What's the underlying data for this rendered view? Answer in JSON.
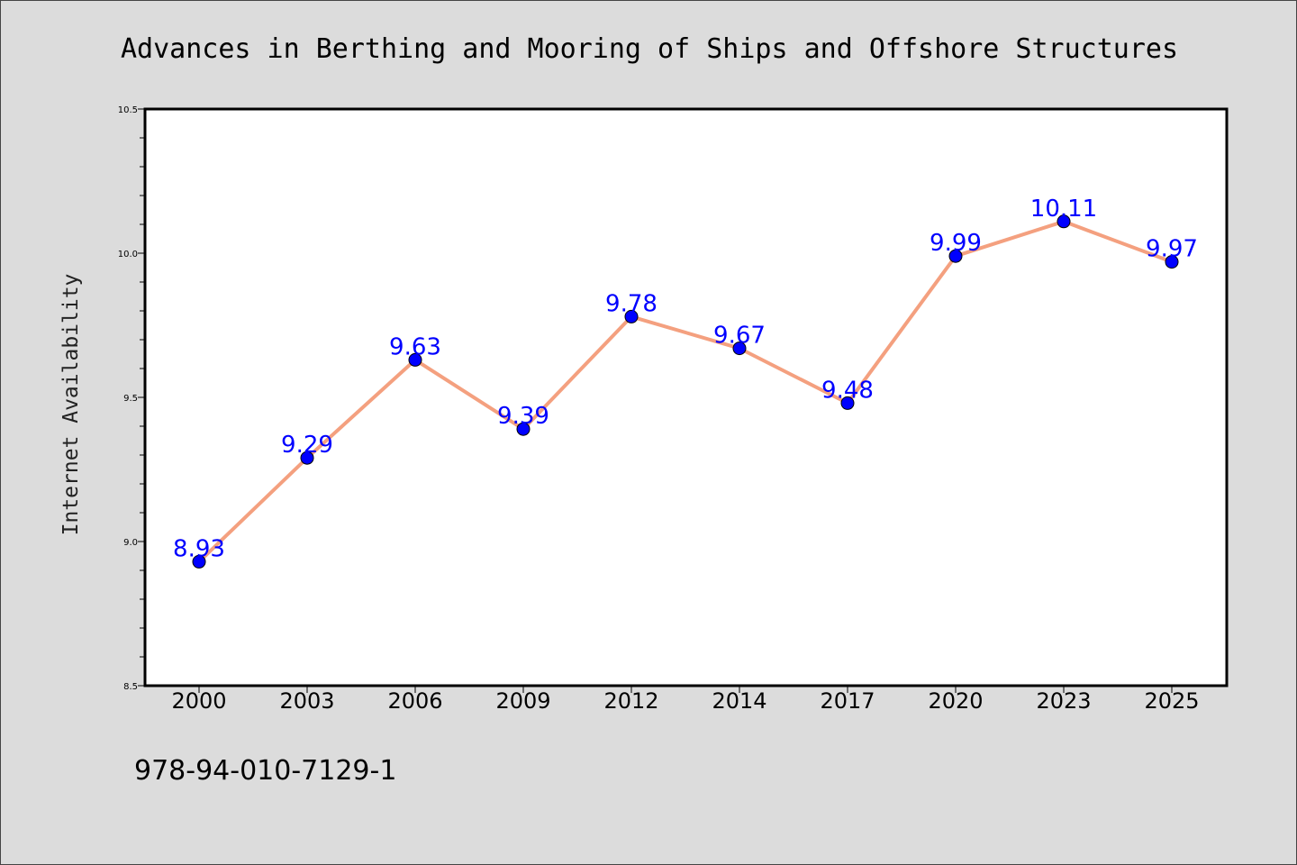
{
  "chart_data": {
    "type": "line",
    "title": "Advances in Berthing and Mooring of Ships and Offshore Structures",
    "xlabel": "",
    "ylabel": "Internet Availability",
    "categories": [
      "2000",
      "2003",
      "2006",
      "2009",
      "2012",
      "2014",
      "2017",
      "2020",
      "2023",
      "2025"
    ],
    "series": [
      {
        "values": [
          8.93,
          9.29,
          9.63,
          9.39,
          9.78,
          9.67,
          9.48,
          9.99,
          10.11,
          9.97
        ],
        "labels": [
          "8.93",
          "9.29",
          "9.63",
          "9.39",
          "9.78",
          "9.67",
          "9.48",
          "9.99",
          "10.11",
          "9.97"
        ]
      }
    ],
    "ylim": [
      8.5,
      10.5
    ],
    "yticks": [
      "8.5",
      "9.0",
      "9.5",
      "10.0",
      "10.5"
    ],
    "grid": false,
    "colors": {
      "line": "#f4a07f",
      "marker": "#0000ff",
      "data_label": "#0000ff",
      "background": "#dcdcdc",
      "plot_background": "#ffffff"
    }
  },
  "footer_text": "978-94-010-7129-1"
}
